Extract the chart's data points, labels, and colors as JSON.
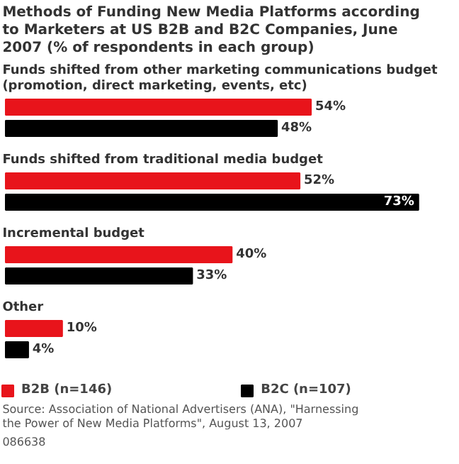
{
  "chart_data": {
    "type": "bar",
    "orientation": "horizontal",
    "title": "Methods of Funding New Media Platforms according to Marketers at US B2B and B2C Companies, June 2007 (% of respondents in each group)",
    "categories": [
      "Funds shifted from other marketing communications budget (promotion, direct marketing, events, etc)",
      "Funds shifted from traditional media budget",
      "Incremental budget",
      "Other"
    ],
    "series": [
      {
        "name": "B2B (n=146)",
        "color": "#e8141b",
        "values": [
          54,
          52,
          40,
          10
        ],
        "value_labels": [
          "54%",
          "52%",
          "40%",
          "10%"
        ]
      },
      {
        "name": "B2C (n=107)",
        "color": "#000000",
        "values": [
          48,
          73,
          33,
          4
        ],
        "value_labels": [
          "48%",
          "73%",
          "33%",
          "4%"
        ]
      }
    ],
    "legend": "bottom left",
    "grid": false,
    "annotations": [
      "Source: Association of National Advertisers (ANA), \"Harnessing the Power of New Media Platforms\", August 13, 2007",
      "086638"
    ]
  }
}
